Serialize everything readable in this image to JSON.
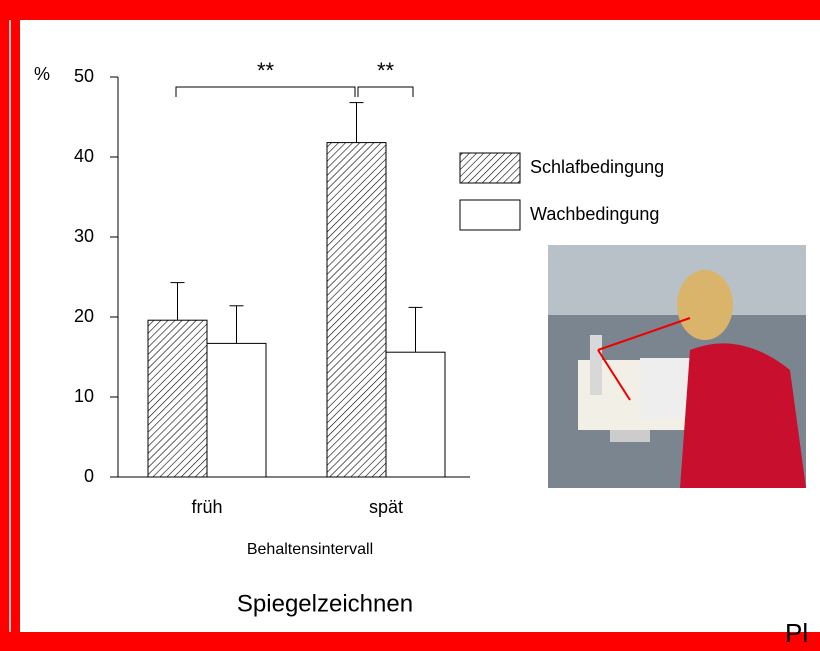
{
  "chart_data": {
    "type": "bar",
    "y_label": "%",
    "x_label": "Behaltensintervall",
    "categories": [
      "früh",
      "spät"
    ],
    "series": [
      {
        "name": "Schlafbedingung",
        "fill": "hatch",
        "color": "#000000",
        "values": [
          19.6,
          41.8
        ],
        "errors": [
          4.7,
          5.0
        ]
      },
      {
        "name": "Wachbedingung",
        "fill": "plain",
        "color": "#ffffff",
        "values": [
          16.7,
          15.6
        ],
        "errors": [
          4.7,
          5.6
        ]
      }
    ],
    "ylim": [
      0,
      50
    ],
    "yticks": [
      0,
      10,
      20,
      30,
      40,
      50
    ],
    "annotations": [
      "**",
      "**"
    ],
    "caption": "Spiegelzeichnen"
  },
  "side_text": "Pl"
}
